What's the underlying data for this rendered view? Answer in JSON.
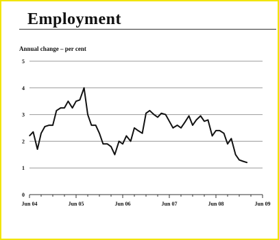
{
  "chart_data": {
    "type": "line",
    "title": "Employment",
    "ylabel": "Annual change – per cent",
    "xlabel": "",
    "ylim": [
      0,
      5
    ],
    "yticks": [
      "0",
      "1",
      "2",
      "3",
      "4",
      "5"
    ],
    "xticks": [
      "Jun 04",
      "Jun 05",
      "Jun 06",
      "Jun 07",
      "Jun 08",
      "Jun 09"
    ],
    "grid": true,
    "legend": "none",
    "line_color": "#111111",
    "series": [
      {
        "x": [
          0,
          0.08,
          0.17,
          0.25,
          0.33,
          0.42,
          0.5,
          0.58,
          0.67,
          0.75,
          0.83,
          0.92,
          1.0,
          1.08,
          1.17,
          1.25,
          1.33,
          1.42,
          1.5,
          1.58,
          1.67,
          1.75,
          1.83,
          1.92,
          2.0,
          2.08,
          2.17,
          2.25,
          2.33,
          2.42,
          2.5,
          2.58,
          2.67,
          2.75,
          2.83,
          2.92,
          3.0,
          3.08,
          3.17,
          3.25,
          3.33,
          3.42,
          3.5,
          3.58,
          3.67,
          3.75,
          3.83,
          3.92,
          4.0,
          4.08,
          4.17,
          4.25,
          4.33,
          4.42,
          4.5,
          4.58,
          4.67
        ],
        "values": [
          2.2,
          2.35,
          1.7,
          2.3,
          2.55,
          2.6,
          2.6,
          3.15,
          3.25,
          3.25,
          3.5,
          3.25,
          3.5,
          3.55,
          4.0,
          3.0,
          2.6,
          2.6,
          2.3,
          1.9,
          1.9,
          1.8,
          1.5,
          2.0,
          1.9,
          2.2,
          2.0,
          2.5,
          2.4,
          2.3,
          3.05,
          3.15,
          3.0,
          2.9,
          3.05,
          3.0,
          2.75,
          2.5,
          2.6,
          2.5,
          2.7,
          2.95,
          2.6,
          2.8,
          2.95,
          2.75,
          2.8,
          2.2,
          2.4,
          2.4,
          2.3,
          1.9,
          2.1,
          1.5,
          1.3,
          1.25,
          1.2
        ]
      }
    ]
  }
}
